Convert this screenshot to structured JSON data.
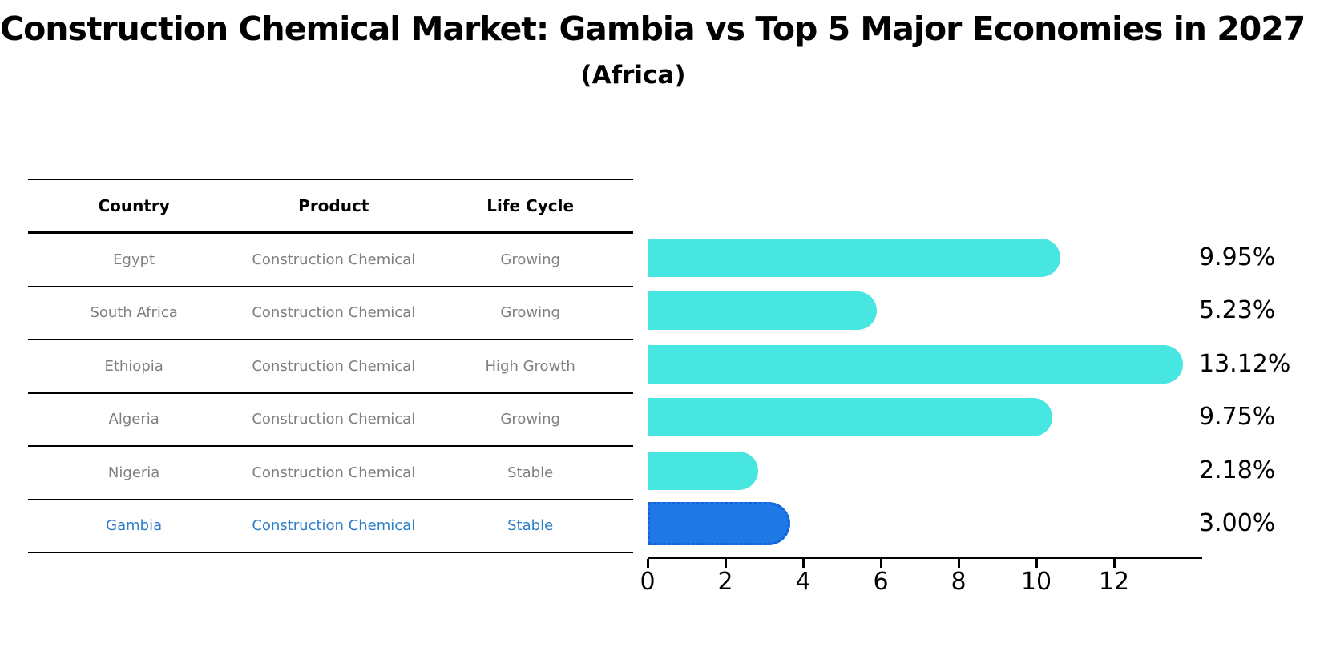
{
  "title": "Construction Chemical Market: Gambia vs Top 5 Major Economies in 2027",
  "subtitle": "(Africa)",
  "table": {
    "headers": [
      "Country",
      "Product",
      "Life Cycle"
    ],
    "rows": [
      {
        "country": "Egypt",
        "product": "Construction Chemical",
        "life_cycle": "Growing",
        "highlight": false
      },
      {
        "country": "South Africa",
        "product": "Construction Chemical",
        "life_cycle": "Growing",
        "highlight": false
      },
      {
        "country": "Ethiopia",
        "product": "Construction Chemical",
        "life_cycle": "High Growth",
        "highlight": false
      },
      {
        "country": "Algeria",
        "product": "Construction Chemical",
        "life_cycle": "Growing",
        "highlight": false
      },
      {
        "country": "Nigeria",
        "product": "Construction Chemical",
        "life_cycle": "Stable",
        "highlight": false
      },
      {
        "country": "Gambia",
        "product": "Construction Chemical",
        "life_cycle": "Stable",
        "highlight": true
      }
    ]
  },
  "chart_data": {
    "type": "bar",
    "orientation": "horizontal",
    "title": "Construction Chemical Market: Gambia vs Top 5 Major Economies in 2027 (Africa)",
    "categories": [
      "Egypt",
      "South Africa",
      "Ethiopia",
      "Algeria",
      "Nigeria",
      "Gambia"
    ],
    "values": [
      9.95,
      5.23,
      13.12,
      9.75,
      2.18,
      3.0
    ],
    "value_labels": [
      "9.95%",
      "5.23%",
      "13.12%",
      "9.75%",
      "2.18%",
      "3.00%"
    ],
    "unit": "percent",
    "highlight_index": 5,
    "x_ticks": [
      0,
      2,
      4,
      6,
      8,
      10,
      12
    ],
    "xlim": [
      0,
      14.3
    ],
    "grid": false,
    "legend": false,
    "colors": {
      "bar": "#47e6e0",
      "highlight_bar": "#1e78e6",
      "highlight_border": "#1161d6",
      "row_text": "#7f7f7f",
      "highlight_text": "#2e7ec9",
      "axis": "#000000"
    }
  }
}
